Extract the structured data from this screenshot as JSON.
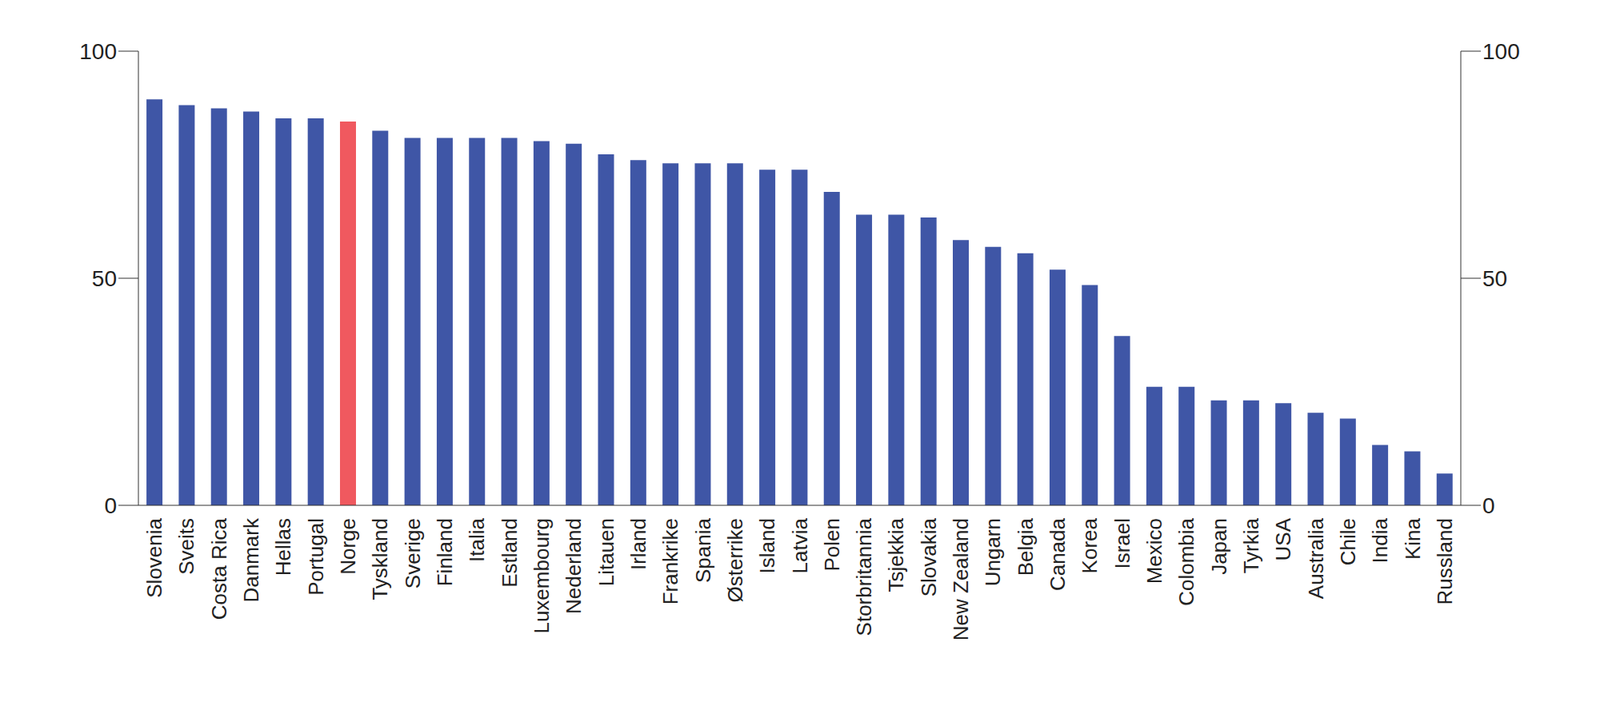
{
  "chart_data": {
    "type": "bar",
    "categories": [
      "Slovenia",
      "Sveits",
      "Costa Rica",
      "Danmark",
      "Hellas",
      "Portugal",
      "Norge",
      "Tyskland",
      "Sverige",
      "Finland",
      "Italia",
      "Estland",
      "Luxembourg",
      "Nederland",
      "Litauen",
      "Irland",
      "Frankrike",
      "Spania",
      "Østerrike",
      "Island",
      "Latvia",
      "Polen",
      "Storbritannia",
      "Tsjekkia",
      "Slovakia",
      "New Zealand",
      "Ungarn",
      "Belgia",
      "Canada",
      "Korea",
      "Israel",
      "Mexico",
      "Colombia",
      "Japan",
      "Tyrkia",
      "USA",
      "Australia",
      "Chile",
      "India",
      "Kina",
      "Russland"
    ],
    "values": [
      89.4,
      88.1,
      87.4,
      86.7,
      85.2,
      85.2,
      84.5,
      82.5,
      80.9,
      80.9,
      80.9,
      80.9,
      80.2,
      79.6,
      77.3,
      76.0,
      75.3,
      75.3,
      75.3,
      73.9,
      73.9,
      69.0,
      64.0,
      64.0,
      63.4,
      58.4,
      56.9,
      55.5,
      51.9,
      48.5,
      37.3,
      26.1,
      26.1,
      23.1,
      23.1,
      22.5,
      20.4,
      19.1,
      13.3,
      11.9,
      7.0
    ],
    "colors": [
      "#3f56a6",
      "#3f56a6",
      "#3f56a6",
      "#3f56a6",
      "#3f56a6",
      "#3f56a6",
      "#f0595f",
      "#3f56a6",
      "#3f56a6",
      "#3f56a6",
      "#3f56a6",
      "#3f56a6",
      "#3f56a6",
      "#3f56a6",
      "#3f56a6",
      "#3f56a6",
      "#3f56a6",
      "#3f56a6",
      "#3f56a6",
      "#3f56a6",
      "#3f56a6",
      "#3f56a6",
      "#3f56a6",
      "#3f56a6",
      "#3f56a6",
      "#3f56a6",
      "#3f56a6",
      "#3f56a6",
      "#3f56a6",
      "#3f56a6",
      "#3f56a6",
      "#3f56a6",
      "#3f56a6",
      "#3f56a6",
      "#3f56a6",
      "#3f56a6",
      "#3f56a6",
      "#3f56a6",
      "#3f56a6",
      "#3f56a6",
      "#3f56a6"
    ],
    "ylim": [
      0,
      100
    ],
    "yticks": [
      0,
      50,
      100
    ],
    "y2lim": [
      0,
      100
    ],
    "y2ticks": [
      0,
      50,
      100
    ],
    "grid": false
  }
}
